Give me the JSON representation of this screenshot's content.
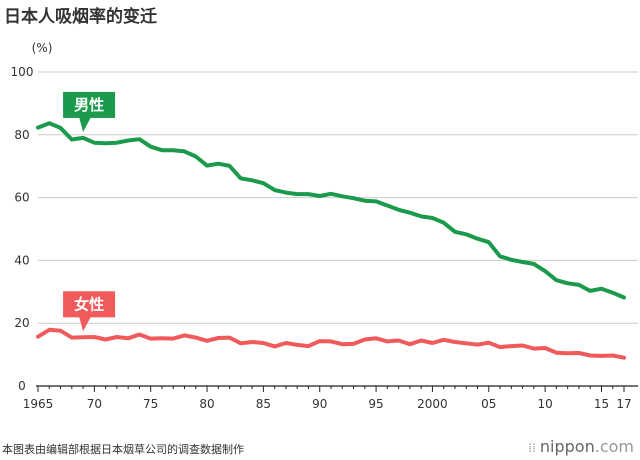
{
  "header": {
    "title": "日本人吸烟率的变迁"
  },
  "footer": {
    "source": "本图表由编辑部根据日本烟草公司的调查数据制作",
    "brand_name": "nippon",
    "brand_suffix": ".com"
  },
  "colors": {
    "male": "#1a9a4a",
    "female": "#f05a5a",
    "grid": "#cccccc",
    "axis": "#222222"
  },
  "chart_data": {
    "type": "line",
    "title": "日本人吸烟率的变迁",
    "ylabel": "(%)",
    "xlabel": "",
    "ylim": [
      0,
      100
    ],
    "xlim": [
      1965,
      2017
    ],
    "grid": true,
    "yticks": [
      0,
      20,
      40,
      60,
      80,
      100
    ],
    "xticks": [
      {
        "value": 1965,
        "label": "1965"
      },
      {
        "value": 1970,
        "label": "70"
      },
      {
        "value": 1975,
        "label": "75"
      },
      {
        "value": 1980,
        "label": "80"
      },
      {
        "value": 1985,
        "label": "85"
      },
      {
        "value": 1990,
        "label": "90"
      },
      {
        "value": 1995,
        "label": "95"
      },
      {
        "value": 2000,
        "label": "2000"
      },
      {
        "value": 2005,
        "label": "05"
      },
      {
        "value": 2010,
        "label": "10"
      },
      {
        "value": 2015,
        "label": "15"
      },
      {
        "value": 2017,
        "label": "17"
      }
    ],
    "x": [
      1965,
      1966,
      1967,
      1968,
      1969,
      1970,
      1971,
      1972,
      1973,
      1974,
      1975,
      1976,
      1977,
      1978,
      1979,
      1980,
      1981,
      1982,
      1983,
      1984,
      1985,
      1986,
      1987,
      1988,
      1989,
      1990,
      1991,
      1992,
      1993,
      1994,
      1995,
      1996,
      1997,
      1998,
      1999,
      2000,
      2001,
      2002,
      2003,
      2004,
      2005,
      2006,
      2007,
      2008,
      2009,
      2010,
      2011,
      2012,
      2013,
      2014,
      2015,
      2016,
      2017
    ],
    "series": [
      {
        "name": "男性",
        "color": "#1a9a4a",
        "values": [
          82.3,
          83.7,
          82.2,
          78.5,
          79.0,
          77.5,
          77.3,
          77.5,
          78.2,
          78.6,
          76.2,
          75.1,
          75.1,
          74.7,
          73.1,
          70.2,
          70.8,
          70.1,
          66.1,
          65.5,
          64.6,
          62.4,
          61.6,
          61.1,
          61.1,
          60.5,
          61.2,
          60.4,
          59.8,
          59.0,
          58.8,
          57.5,
          56.1,
          55.2,
          54.0,
          53.5,
          52.0,
          49.1,
          48.3,
          46.9,
          45.8,
          41.3,
          40.2,
          39.5,
          38.9,
          36.6,
          33.7,
          32.7,
          32.2,
          30.3,
          31.0,
          29.7,
          28.2
        ]
      },
      {
        "name": "女性",
        "color": "#f05a5a",
        "values": [
          15.7,
          17.9,
          17.6,
          15.4,
          15.5,
          15.6,
          14.8,
          15.6,
          15.2,
          16.4,
          15.1,
          15.2,
          15.1,
          16.1,
          15.4,
          14.4,
          15.3,
          15.4,
          13.6,
          14.0,
          13.7,
          12.6,
          13.7,
          13.1,
          12.7,
          14.3,
          14.2,
          13.3,
          13.4,
          14.8,
          15.2,
          14.2,
          14.5,
          13.3,
          14.5,
          13.7,
          14.7,
          14.0,
          13.6,
          13.2,
          13.8,
          12.4,
          12.7,
          12.9,
          11.9,
          12.1,
          10.6,
          10.4,
          10.5,
          9.7,
          9.6,
          9.7,
          9.0
        ]
      }
    ],
    "labels": [
      {
        "series": 0,
        "text": "男性",
        "x": 1969
      },
      {
        "series": 1,
        "text": "女性",
        "x": 1969
      }
    ]
  }
}
